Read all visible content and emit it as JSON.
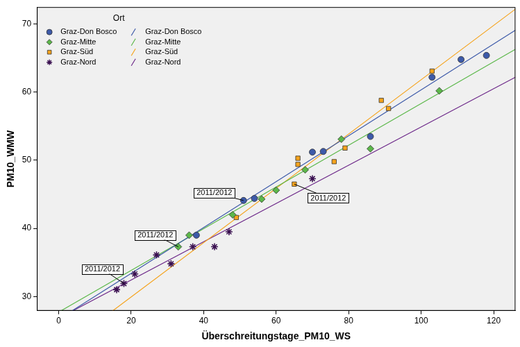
{
  "chart_data": {
    "type": "scatter",
    "x_label": "Überschreitungstage_PM10_WS",
    "y_label": "PM10_WMW",
    "xlim": [
      -6,
      126
    ],
    "ylim": [
      27.9,
      72.5
    ],
    "xticks": [
      0,
      20,
      40,
      60,
      80,
      100,
      120
    ],
    "yticks": [
      30,
      40,
      50,
      60,
      70
    ],
    "grid": false,
    "legend": "upper left",
    "legend_title": "Ort",
    "series": [
      {
        "name": "Graz-Don Bosco",
        "color": "#3d5aa9",
        "marker": "circle",
        "x": [
          38,
          51,
          54,
          70,
          73,
          86,
          103,
          111,
          118
        ],
        "values": [
          39.0,
          44.1,
          44.4,
          51.2,
          51.3,
          53.5,
          62.2,
          64.8,
          65.4
        ],
        "fit_line": {
          "x": [
            0,
            126
          ],
          "values": [
            26.65,
            69.1
          ]
        }
      },
      {
        "name": "Graz-Mitte",
        "color": "#5cb84a",
        "marker": "diamond",
        "x": [
          33,
          36,
          48,
          56,
          60,
          68,
          78,
          86,
          105
        ],
        "values": [
          37.3,
          39.0,
          42.0,
          44.3,
          45.6,
          48.6,
          53.1,
          51.7,
          60.2
        ],
        "fit_line": {
          "x": [
            0,
            126
          ],
          "values": [
            27.7,
            66.3
          ]
        }
      },
      {
        "name": "Graz-Süd",
        "color": "#f5a31c",
        "marker": "square",
        "x": [
          49,
          65,
          66,
          66,
          76,
          79,
          89,
          91,
          103
        ],
        "values": [
          41.6,
          46.5,
          50.3,
          49.4,
          49.8,
          51.8,
          58.8,
          57.6,
          63.1
        ],
        "fit_line": {
          "x": [
            0,
            126
          ],
          "values": [
            21.95,
            72.2
          ]
        }
      },
      {
        "name": "Graz-Nord",
        "color": "#6e2a8a",
        "marker": "star",
        "x": [
          16,
          18,
          21,
          27,
          31,
          37,
          43,
          47,
          70
        ],
        "values": [
          31.0,
          31.9,
          33.3,
          36.1,
          34.8,
          37.3,
          37.3,
          39.5,
          47.3
        ],
        "fit_line": {
          "x": [
            0,
            126
          ],
          "values": [
            26.8,
            62.2
          ]
        }
      }
    ],
    "annotations": [
      {
        "text": "2011/2012",
        "x": 51,
        "y": 44.1
      },
      {
        "text": "2011/2012",
        "x": 33,
        "y": 37.3
      },
      {
        "text": "2011/2012",
        "x": 18,
        "y": 31.9
      },
      {
        "text": "2011/2012",
        "x": 65,
        "y": 46.5
      }
    ]
  }
}
